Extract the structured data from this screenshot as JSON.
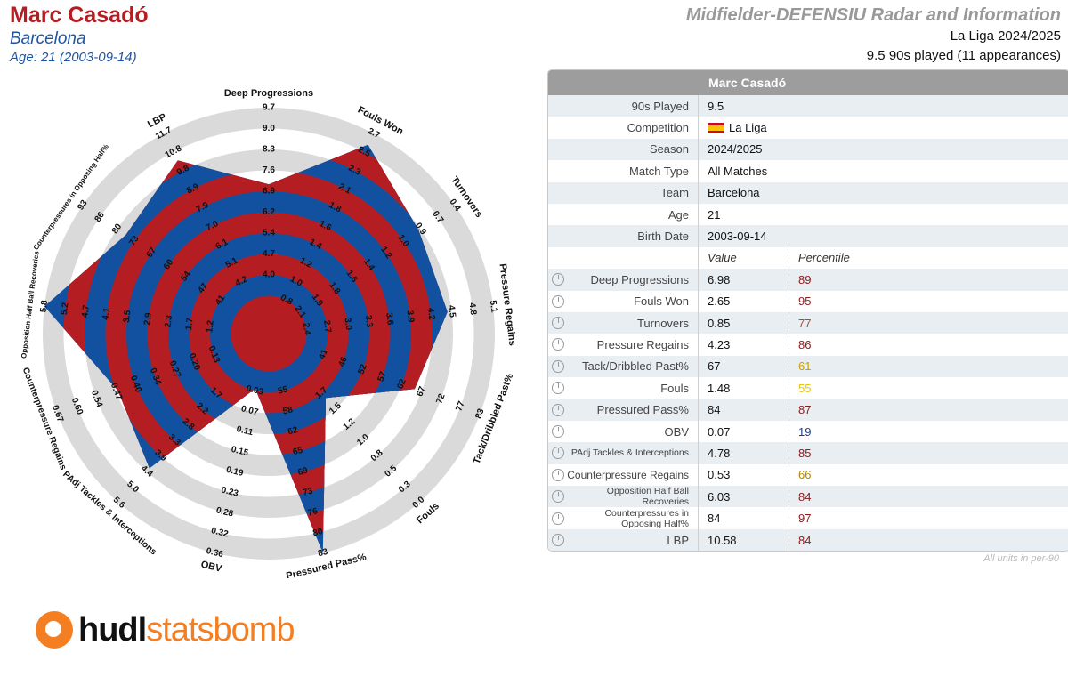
{
  "header": {
    "player_name": "Marc Casadó",
    "team": "Barcelona",
    "age_line": "Age: 21 (2003-09-14)",
    "template_title": "Midfielder-DEFENSIU Radar and Information",
    "competition_season": "La Liga 2024/2025",
    "played_line": "9.5 90s played (11 appearances)"
  },
  "table": {
    "title": "Marc Casadó",
    "info_rows": [
      {
        "label": "90s Played",
        "value": "9.5"
      },
      {
        "label": "Competition",
        "value": "La Liga"
      },
      {
        "label": "Season",
        "value": "2024/2025"
      },
      {
        "label": "Match Type",
        "value": "All Matches"
      },
      {
        "label": "Team",
        "value": "Barcelona"
      },
      {
        "label": "Age",
        "value": "21"
      },
      {
        "label": "Birth Date",
        "value": "2003-09-14"
      }
    ],
    "value_header": "Value",
    "percentile_header": "Percentile",
    "metric_rows": [
      {
        "label": "Deep Progressions",
        "value": "6.98",
        "percentile": "89",
        "color": "#8b1a1a"
      },
      {
        "label": "Fouls Won",
        "value": "2.65",
        "percentile": "95",
        "color": "#8b1a1a"
      },
      {
        "label": "Turnovers",
        "value": "0.85",
        "percentile": "77",
        "color": "#a0522d"
      },
      {
        "label": "Pressure Regains",
        "value": "4.23",
        "percentile": "86",
        "color": "#8b1a1a"
      },
      {
        "label": "Tack/Dribbled Past%",
        "value": "67",
        "percentile": "61",
        "color": "#c8a000"
      },
      {
        "label": "Fouls",
        "value": "1.48",
        "percentile": "55",
        "color": "#e6c619"
      },
      {
        "label": "Pressured Pass%",
        "value": "84",
        "percentile": "87",
        "color": "#8b1a1a"
      },
      {
        "label": "OBV",
        "value": "0.07",
        "percentile": "19",
        "color": "#1f3f8a"
      },
      {
        "label": "PAdj Tackles & Interceptions",
        "value": "4.78",
        "percentile": "85",
        "color": "#8b1a1a"
      },
      {
        "label": "Counterpressure Regains",
        "value": "0.53",
        "percentile": "66",
        "color": "#b8860b"
      },
      {
        "label": "Opposition Half Ball Recoveries",
        "value": "6.03",
        "percentile": "84",
        "color": "#8b1a1a"
      },
      {
        "label": "Counterpressures in Opposing Half%",
        "value": "84",
        "percentile": "97",
        "color": "#8b1a1a"
      },
      {
        "label": "LBP",
        "value": "10.58",
        "percentile": "84",
        "color": "#8b1a1a"
      }
    ],
    "units_note": "All units in per-90"
  },
  "logo": {
    "part1": "hudl",
    "part2": "statsbomb"
  },
  "colors": {
    "red": "#b41e23",
    "blue": "#1251a0",
    "ring_grey": "#dadada"
  },
  "chart_data": {
    "type": "radar",
    "axes": [
      {
        "label": "Deep Progressions",
        "ticks": [
          "4.0",
          "4.7",
          "5.4",
          "6.2",
          "6.9",
          "7.6",
          "8.3",
          "9.0",
          "9.7"
        ],
        "value": 6.98,
        "fraction": 0.633
      },
      {
        "label": "Fouls Won",
        "ticks": [
          "0.8",
          "1.0",
          "1.2",
          "1.4",
          "1.6",
          "1.8",
          "2.1",
          "2.3",
          "2.5",
          "2.7"
        ],
        "value": 2.65,
        "fraction": 0.94
      },
      {
        "label": "Turnovers",
        "ticks": [
          "2.1",
          "1.9",
          "1.8",
          "1.6",
          "1.4",
          "1.2",
          "1.0",
          "0.9",
          "0.7",
          "0.4"
        ],
        "value": 0.85,
        "fraction": 0.79
      },
      {
        "label": "Pressure Regains",
        "ticks": [
          "2.4",
          "2.7",
          "3.0",
          "3.3",
          "3.6",
          "3.9",
          "4.2",
          "4.5",
          "4.8",
          "5.1"
        ],
        "value": 4.23,
        "fraction": 0.78
      },
      {
        "label": "Tack/Dribbled Past%",
        "ticks": [
          "41",
          "46",
          "52",
          "57",
          "62",
          "67",
          "72",
          "77",
          "83"
        ],
        "value": 67,
        "fraction": 0.665
      },
      {
        "label": "Fouls",
        "ticks": [
          "1.7",
          "1.5",
          "1.2",
          "1.0",
          "0.8",
          "0.5",
          "0.3",
          "0.0"
        ],
        "value": 1.48,
        "fraction": 0.33
      },
      {
        "label": "Pressured Pass%",
        "ticks": [
          "55",
          "58",
          "62",
          "65",
          "69",
          "73",
          "76",
          "80",
          "83"
        ],
        "value": 84,
        "fraction": 1.0
      },
      {
        "label": "OBV",
        "ticks": [
          "0.03",
          "0.07",
          "0.11",
          "0.15",
          "0.19",
          "0.23",
          "0.28",
          "0.32",
          "0.36"
        ],
        "value": 0.07,
        "fraction": 0.19
      },
      {
        "label": "PAdj Tackles & Interceptions",
        "ticks": [
          "1.7",
          "2.2",
          "2.8",
          "3.3",
          "3.9",
          "4.4",
          "5.0",
          "5.6"
        ],
        "value": 4.78,
        "fraction": 0.78
      },
      {
        "label": "Counterpressure Regains",
        "ticks": [
          "0.13",
          "0.20",
          "0.27",
          "0.34",
          "0.40",
          "0.47",
          "0.54",
          "0.60",
          "0.67"
        ],
        "value": 0.53,
        "fraction": 0.69
      },
      {
        "label": "Opposition Half Ball Recoveries",
        "ticks": [
          "1.2",
          "1.7",
          "2.3",
          "2.9",
          "3.5",
          "4.1",
          "4.7",
          "5.2",
          "5.8"
        ],
        "value": 6.03,
        "fraction": 1.0
      },
      {
        "label": "Counterpressures in Opposing Half%",
        "ticks": [
          "41",
          "47",
          "54",
          "60",
          "67",
          "73",
          "80",
          "86",
          "93"
        ],
        "value": 84,
        "fraction": 0.75
      },
      {
        "label": "LBP",
        "ticks": [
          "4.2",
          "5.1",
          "6.1",
          "7.0",
          "7.9",
          "8.9",
          "9.8",
          "10.8",
          "11.7"
        ],
        "value": 10.58,
        "fraction": 0.855
      }
    ]
  }
}
